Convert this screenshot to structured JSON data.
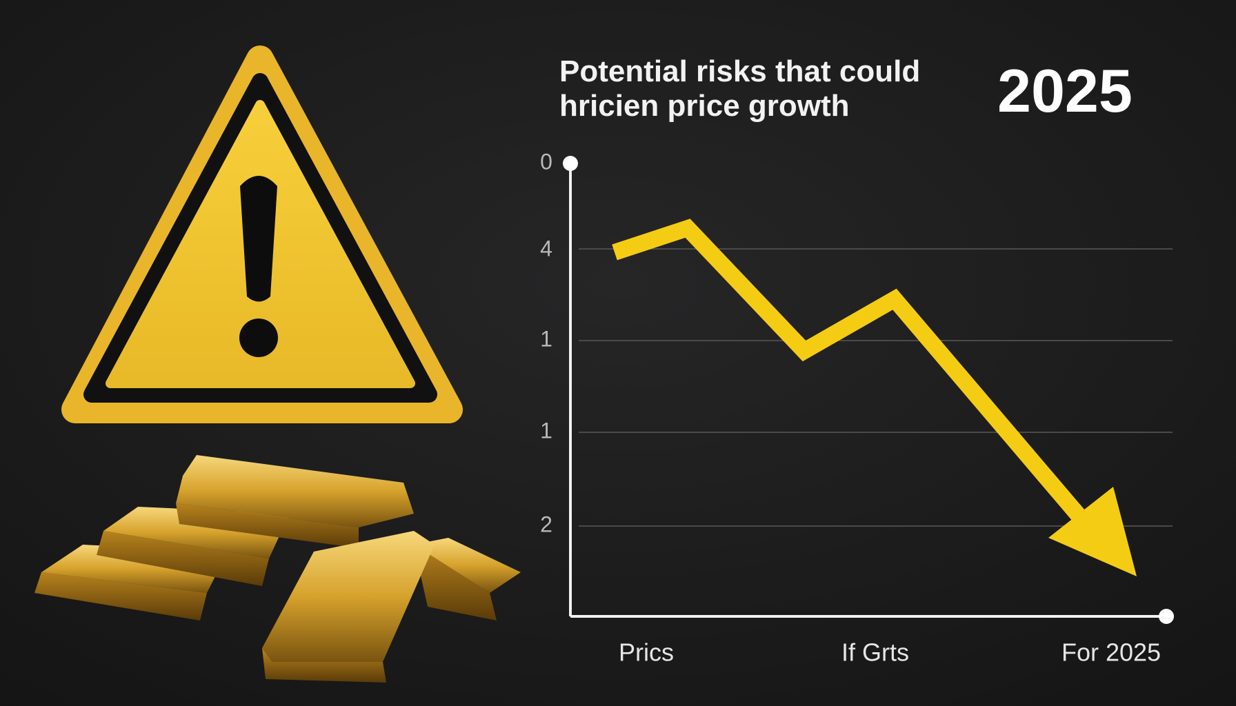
{
  "title_lines": [
    "Potential risks that could",
    "hricien price growth"
  ],
  "year": "2025",
  "chart": {
    "y_labels": [
      "0",
      "4",
      "1",
      "1",
      "2"
    ],
    "x_labels": [
      "Prics",
      "If Grts",
      "For 2025"
    ]
  }
}
